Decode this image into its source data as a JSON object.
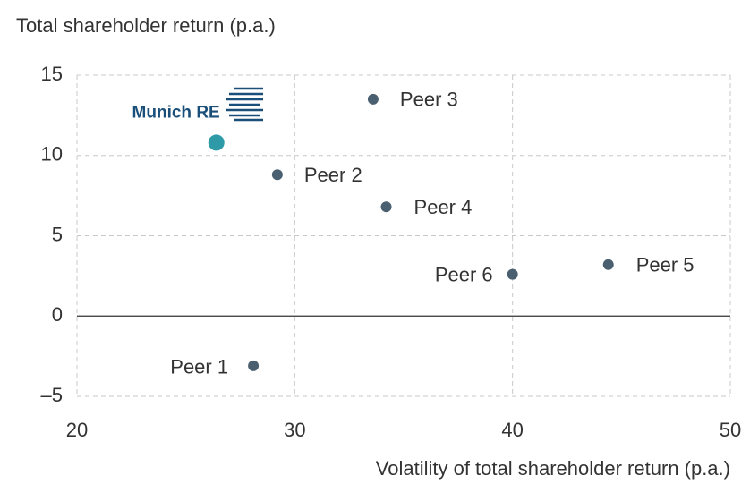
{
  "chart_data": {
    "type": "scatter",
    "title": "Total shareholder return (p.a.)",
    "x_label": "Volatility of total shareholder return (p.a.)",
    "labels": [
      "Munich RE",
      "Peer 1",
      "Peer 2",
      "Peer 3",
      "Peer 4",
      "Peer 5",
      "Peer 6"
    ],
    "x": [
      26.4,
      28.1,
      29.2,
      33.6,
      34.2,
      44.4,
      40.0
    ],
    "y": [
      10.8,
      -3.1,
      8.8,
      13.5,
      6.8,
      3.2,
      2.6
    ],
    "colors": [
      "#2e9aa8",
      "#4a5f70",
      "#4a5f70",
      "#4a5f70",
      "#4a5f70",
      "#4a5f70",
      "#4a5f70"
    ],
    "xlim": [
      20,
      50
    ],
    "xticks": [
      20,
      30,
      40,
      50
    ],
    "ylim": [
      -5,
      15
    ],
    "yticks": [
      {
        "value": -5,
        "label": "–5"
      },
      0,
      5,
      10,
      15
    ],
    "grid": true
  }
}
